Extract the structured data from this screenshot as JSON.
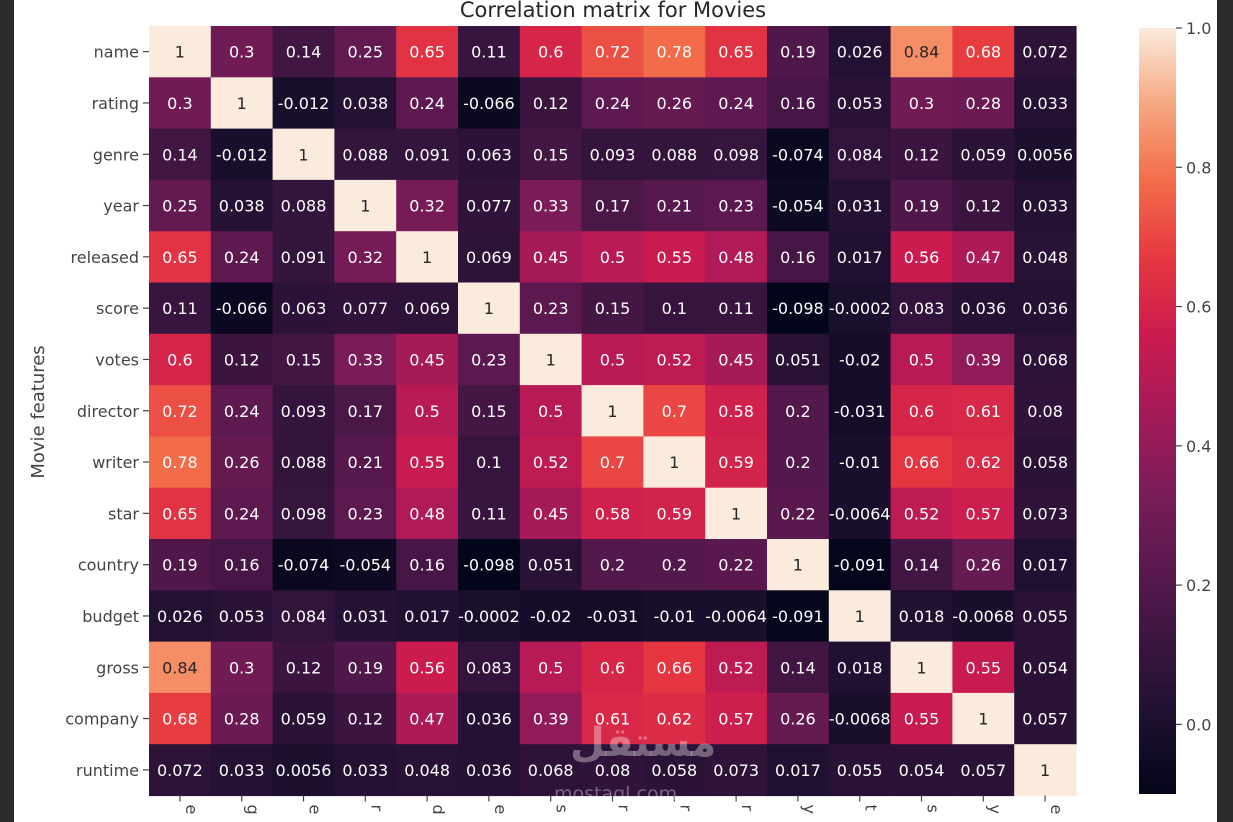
{
  "chart_data": {
    "type": "heatmap",
    "title": "Correlation matrix for Movies",
    "ylabel": "Movie features",
    "xlabel": "",
    "rows": [
      "name",
      "rating",
      "genre",
      "year",
      "released",
      "score",
      "votes",
      "director",
      "writer",
      "star",
      "country",
      "budget",
      "gross",
      "company",
      "runtime"
    ],
    "columns": [
      "name",
      "rating",
      "genre",
      "year",
      "released",
      "score",
      "votes",
      "director",
      "writer",
      "star",
      "country",
      "budget",
      "gross",
      "company",
      "runtime"
    ],
    "columns_visible_fragments": [
      "e",
      "g",
      "e",
      "r",
      "d",
      "e",
      "s",
      "r",
      "r",
      "r",
      "y",
      "t",
      "s",
      "y",
      "e"
    ],
    "values": [
      [
        1,
        0.3,
        0.14,
        0.25,
        0.65,
        0.11,
        0.6,
        0.72,
        0.78,
        0.65,
        0.19,
        0.026,
        0.84,
        0.68,
        0.072
      ],
      [
        0.3,
        1,
        -0.012,
        0.038,
        0.24,
        -0.066,
        0.12,
        0.24,
        0.26,
        0.24,
        0.16,
        0.053,
        0.3,
        0.28,
        0.033
      ],
      [
        0.14,
        -0.012,
        1,
        0.088,
        0.091,
        0.063,
        0.15,
        0.093,
        0.088,
        0.098,
        -0.074,
        0.084,
        0.12,
        0.059,
        0.0056
      ],
      [
        0.25,
        0.038,
        0.088,
        1,
        0.32,
        0.077,
        0.33,
        0.17,
        0.21,
        0.23,
        -0.054,
        0.031,
        0.19,
        0.12,
        0.033
      ],
      [
        0.65,
        0.24,
        0.091,
        0.32,
        1,
        0.069,
        0.45,
        0.5,
        0.55,
        0.48,
        0.16,
        0.017,
        0.56,
        0.47,
        0.048
      ],
      [
        0.11,
        -0.066,
        0.063,
        0.077,
        0.069,
        1,
        0.23,
        0.15,
        0.1,
        0.11,
        -0.098,
        -0.0002,
        0.083,
        0.036,
        0.036
      ],
      [
        0.6,
        0.12,
        0.15,
        0.33,
        0.45,
        0.23,
        1,
        0.5,
        0.52,
        0.45,
        0.051,
        -0.02,
        0.5,
        0.39,
        0.068
      ],
      [
        0.72,
        0.24,
        0.093,
        0.17,
        0.5,
        0.15,
        0.5,
        1,
        0.7,
        0.58,
        0.2,
        -0.031,
        0.6,
        0.61,
        0.08
      ],
      [
        0.78,
        0.26,
        0.088,
        0.21,
        0.55,
        0.1,
        0.52,
        0.7,
        1,
        0.59,
        0.2,
        -0.01,
        0.66,
        0.62,
        0.058
      ],
      [
        0.65,
        0.24,
        0.098,
        0.23,
        0.48,
        0.11,
        0.45,
        0.58,
        0.59,
        1,
        0.22,
        -0.0064,
        0.52,
        0.57,
        0.073
      ],
      [
        0.19,
        0.16,
        -0.074,
        -0.054,
        0.16,
        -0.098,
        0.051,
        0.2,
        0.2,
        0.22,
        1,
        -0.091,
        0.14,
        0.26,
        0.017
      ],
      [
        0.026,
        0.053,
        0.084,
        0.031,
        0.017,
        -0.0002,
        -0.02,
        -0.031,
        -0.01,
        -0.0064,
        -0.091,
        1,
        0.018,
        -0.0068,
        0.055
      ],
      [
        0.84,
        0.3,
        0.12,
        0.19,
        0.56,
        0.083,
        0.5,
        0.6,
        0.66,
        0.52,
        0.14,
        0.018,
        1,
        0.55,
        0.054
      ],
      [
        0.68,
        0.28,
        0.059,
        0.12,
        0.47,
        0.036,
        0.39,
        0.61,
        0.62,
        0.57,
        0.26,
        -0.0068,
        0.55,
        1,
        0.057
      ],
      [
        0.072,
        0.033,
        0.0056,
        0.033,
        0.048,
        0.036,
        0.068,
        0.08,
        0.058,
        0.073,
        0.017,
        0.055,
        0.054,
        0.057,
        1
      ]
    ],
    "vmin": -0.1,
    "vmax": 1.0,
    "colormap": "rocket",
    "colorbar": {
      "ticks": [
        0.0,
        0.2,
        0.4,
        0.6,
        0.8,
        1.0
      ],
      "tick_labels": [
        "0.0",
        "0.2",
        "0.4",
        "0.6",
        "0.8",
        "1.0"
      ]
    },
    "annotations": true,
    "grid": false,
    "legend": "colorbar-right"
  },
  "watermark": {
    "arabic": "مستقل",
    "latin": "mostaql.com"
  },
  "colors": {
    "background": "#ffffff",
    "frame": "#2b2b2b",
    "axis_text": "#444444"
  }
}
